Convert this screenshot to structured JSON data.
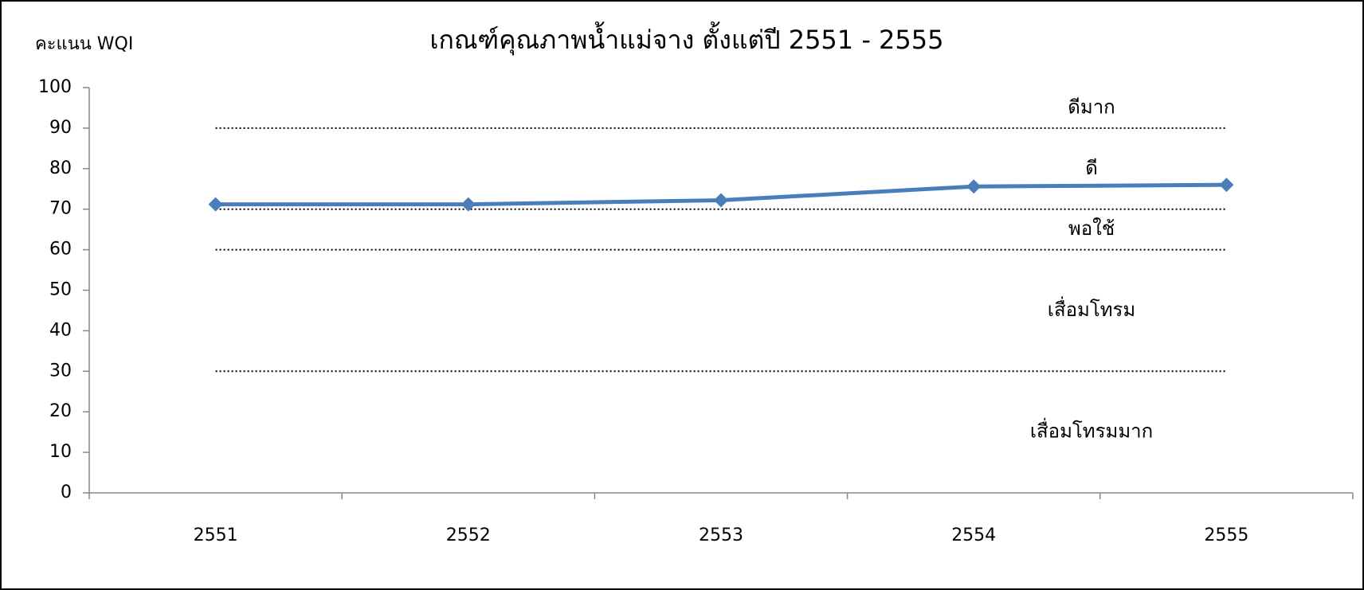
{
  "chart_data": {
    "type": "line",
    "title": "เกณฑ์คุณภาพน้ำแม่จาง ตั้งแต่ปี 2551 - 2555",
    "y_label": "คะแนน WQI",
    "categories": [
      "2551",
      "2552",
      "2553",
      "2554",
      "2555"
    ],
    "series": [
      {
        "name": "WQI",
        "color": "#4a7ebb",
        "values": [
          71.2,
          71.2,
          72.2,
          75.6,
          76
        ]
      }
    ],
    "ylim": [
      0,
      100
    ],
    "yticks": [
      0,
      10,
      20,
      30,
      40,
      50,
      60,
      70,
      80,
      90,
      100
    ],
    "thresholds": [
      90,
      70,
      60,
      30
    ],
    "bands": [
      "ดีมาก",
      "ดี",
      "พอใช้",
      "เสื่อมโทรม",
      "เสื่อมโทรมมาก"
    ]
  }
}
